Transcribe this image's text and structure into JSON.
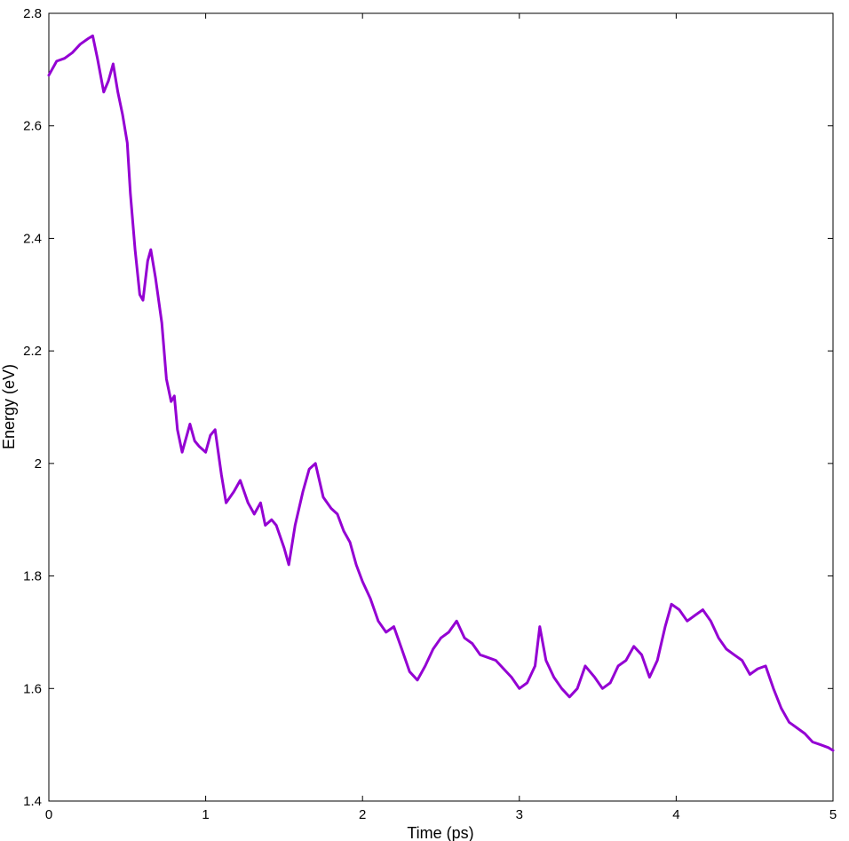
{
  "chart_data": {
    "type": "line",
    "title": "",
    "xlabel": "Time (ps)",
    "ylabel": "Energy (eV)",
    "xlim": [
      0,
      5
    ],
    "ylim": [
      1.4,
      2.8
    ],
    "xticks": [
      0,
      1,
      2,
      3,
      4,
      5
    ],
    "xtick_labels": [
      "0",
      "1",
      "2",
      "3",
      "4",
      "5"
    ],
    "yticks": [
      1.4,
      1.6,
      1.8,
      2.0,
      2.2,
      2.4,
      2.6,
      2.8
    ],
    "ytick_labels": [
      "1.4",
      "1.6",
      "1.8",
      "2",
      "2.2",
      "2.4",
      "2.6",
      "2.8"
    ],
    "grid": false,
    "series": [
      {
        "color": "#9400d3",
        "x": [
          0,
          0.05,
          0.1,
          0.15,
          0.2,
          0.25,
          0.28,
          0.31,
          0.35,
          0.38,
          0.41,
          0.44,
          0.47,
          0.5,
          0.52,
          0.55,
          0.58,
          0.6,
          0.63,
          0.65,
          0.68,
          0.72,
          0.75,
          0.78,
          0.8,
          0.82,
          0.85,
          0.88,
          0.9,
          0.93,
          0.96,
          1.0,
          1.03,
          1.06,
          1.1,
          1.13,
          1.18,
          1.22,
          1.27,
          1.31,
          1.35,
          1.38,
          1.42,
          1.45,
          1.5,
          1.53,
          1.57,
          1.62,
          1.66,
          1.7,
          1.75,
          1.8,
          1.84,
          1.88,
          1.92,
          1.96,
          2.0,
          2.05,
          2.1,
          2.15,
          2.2,
          2.25,
          2.3,
          2.35,
          2.4,
          2.45,
          2.5,
          2.55,
          2.6,
          2.65,
          2.7,
          2.75,
          2.8,
          2.85,
          2.9,
          2.95,
          3.0,
          3.05,
          3.1,
          3.13,
          3.17,
          3.22,
          3.27,
          3.32,
          3.37,
          3.42,
          3.48,
          3.53,
          3.58,
          3.63,
          3.68,
          3.73,
          3.78,
          3.83,
          3.88,
          3.93,
          3.97,
          4.02,
          4.07,
          4.12,
          4.17,
          4.22,
          4.27,
          4.32,
          4.37,
          4.42,
          4.47,
          4.52,
          4.57,
          4.62,
          4.67,
          4.72,
          4.77,
          4.82,
          4.87,
          4.92,
          4.97,
          5.0
        ],
        "y": [
          2.69,
          2.715,
          2.72,
          2.73,
          2.745,
          2.755,
          2.76,
          2.72,
          2.66,
          2.68,
          2.71,
          2.66,
          2.62,
          2.57,
          2.48,
          2.38,
          2.3,
          2.29,
          2.36,
          2.38,
          2.33,
          2.25,
          2.15,
          2.11,
          2.12,
          2.06,
          2.02,
          2.05,
          2.07,
          2.04,
          2.03,
          2.02,
          2.05,
          2.06,
          1.98,
          1.93,
          1.95,
          1.97,
          1.93,
          1.91,
          1.93,
          1.89,
          1.9,
          1.89,
          1.85,
          1.82,
          1.89,
          1.95,
          1.99,
          2.0,
          1.94,
          1.92,
          1.91,
          1.88,
          1.86,
          1.82,
          1.79,
          1.76,
          1.72,
          1.7,
          1.71,
          1.67,
          1.63,
          1.615,
          1.64,
          1.67,
          1.69,
          1.7,
          1.72,
          1.69,
          1.68,
          1.66,
          1.655,
          1.65,
          1.635,
          1.62,
          1.6,
          1.61,
          1.64,
          1.71,
          1.65,
          1.62,
          1.6,
          1.585,
          1.6,
          1.64,
          1.62,
          1.6,
          1.61,
          1.64,
          1.65,
          1.675,
          1.66,
          1.62,
          1.65,
          1.71,
          1.75,
          1.74,
          1.72,
          1.73,
          1.74,
          1.72,
          1.69,
          1.67,
          1.66,
          1.65,
          1.625,
          1.635,
          1.64,
          1.6,
          1.565,
          1.54,
          1.53,
          1.52,
          1.505,
          1.5,
          1.495,
          1.49
        ]
      }
    ]
  }
}
